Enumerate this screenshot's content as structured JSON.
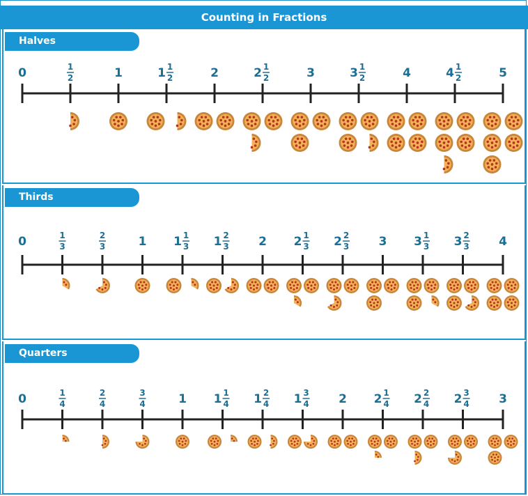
{
  "title": "Counting in Fractions",
  "sections": [
    {
      "name": "Halves",
      "denominator": 2,
      "labels": [
        {
          "whole": "0",
          "num": "",
          "den": ""
        },
        {
          "whole": "",
          "num": "1",
          "den": "2"
        },
        {
          "whole": "1",
          "num": "",
          "den": ""
        },
        {
          "whole": "1",
          "num": "1",
          "den": "2"
        },
        {
          "whole": "2",
          "num": "",
          "den": ""
        },
        {
          "whole": "2",
          "num": "1",
          "den": "2"
        },
        {
          "whole": "3",
          "num": "",
          "den": ""
        },
        {
          "whole": "3",
          "num": "1",
          "den": "2"
        },
        {
          "whole": "4",
          "num": "",
          "den": ""
        },
        {
          "whole": "4",
          "num": "1",
          "den": "2"
        },
        {
          "whole": "5",
          "num": "",
          "den": ""
        }
      ]
    },
    {
      "name": "Thirds",
      "denominator": 3,
      "labels": [
        {
          "whole": "0",
          "num": "",
          "den": ""
        },
        {
          "whole": "",
          "num": "1",
          "den": "3"
        },
        {
          "whole": "",
          "num": "2",
          "den": "3"
        },
        {
          "whole": "1",
          "num": "",
          "den": ""
        },
        {
          "whole": "1",
          "num": "1",
          "den": "3"
        },
        {
          "whole": "1",
          "num": "2",
          "den": "3"
        },
        {
          "whole": "2",
          "num": "",
          "den": ""
        },
        {
          "whole": "2",
          "num": "1",
          "den": "3"
        },
        {
          "whole": "2",
          "num": "2",
          "den": "3"
        },
        {
          "whole": "3",
          "num": "",
          "den": ""
        },
        {
          "whole": "3",
          "num": "1",
          "den": "3"
        },
        {
          "whole": "3",
          "num": "2",
          "den": "3"
        },
        {
          "whole": "4",
          "num": "",
          "den": ""
        }
      ]
    },
    {
      "name": "Quarters",
      "denominator": 4,
      "labels": [
        {
          "whole": "0",
          "num": "",
          "den": ""
        },
        {
          "whole": "",
          "num": "1",
          "den": "4"
        },
        {
          "whole": "",
          "num": "2",
          "den": "4"
        },
        {
          "whole": "",
          "num": "3",
          "den": "4"
        },
        {
          "whole": "1",
          "num": "",
          "den": ""
        },
        {
          "whole": "1",
          "num": "1",
          "den": "4"
        },
        {
          "whole": "1",
          "num": "2",
          "den": "4"
        },
        {
          "whole": "1",
          "num": "3",
          "den": "4"
        },
        {
          "whole": "2",
          "num": "",
          "den": ""
        },
        {
          "whole": "2",
          "num": "1",
          "den": "4"
        },
        {
          "whole": "2",
          "num": "2",
          "den": "4"
        },
        {
          "whole": "2",
          "num": "3",
          "den": "4"
        },
        {
          "whole": "3",
          "num": "",
          "den": ""
        }
      ]
    }
  ],
  "colors": {
    "accent": "#1996d3",
    "label": "#1b6e94",
    "line": "#222222",
    "pizza_crust": "#c9853a",
    "pizza_cheese": "#f3b25a",
    "pepperoni": "#b5361c"
  },
  "icons": {
    "pizza": "pizza-icon"
  }
}
